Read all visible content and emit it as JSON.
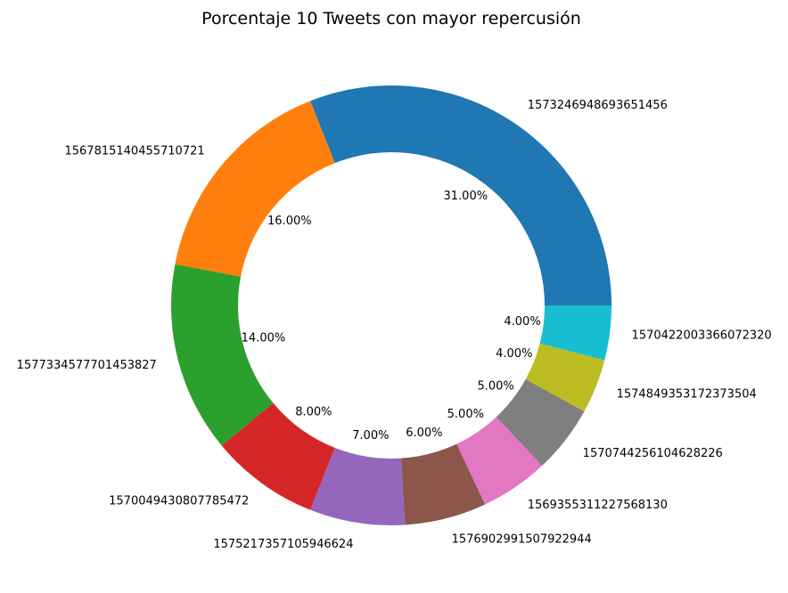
{
  "chart_data": {
    "type": "pie",
    "style": "donut",
    "title": "Porcentaje 10 Tweets con mayor repercusión",
    "categories": [
      "1573246948693651456",
      "1567815140455710721",
      "1577334577701453827",
      "1570049430807785472",
      "1575217357105946624",
      "1576902991507922944",
      "1569355311227568130",
      "1570744256104628226",
      "1574849353172373504",
      "1570422003366072320"
    ],
    "values": [
      31,
      16,
      14,
      8,
      7,
      6,
      5,
      5,
      4,
      4
    ],
    "percent_labels": [
      "31.00%",
      "16.00%",
      "14.00%",
      "8.00%",
      "7.00%",
      "6.00%",
      "5.00%",
      "5.00%",
      "4.00%",
      "4.00%"
    ],
    "colors": [
      "#1f77b4",
      "#ff7f0e",
      "#2ca02c",
      "#d62728",
      "#9467bd",
      "#8c564b",
      "#e377c2",
      "#7f7f7f",
      "#bcbd22",
      "#17becf"
    ]
  }
}
